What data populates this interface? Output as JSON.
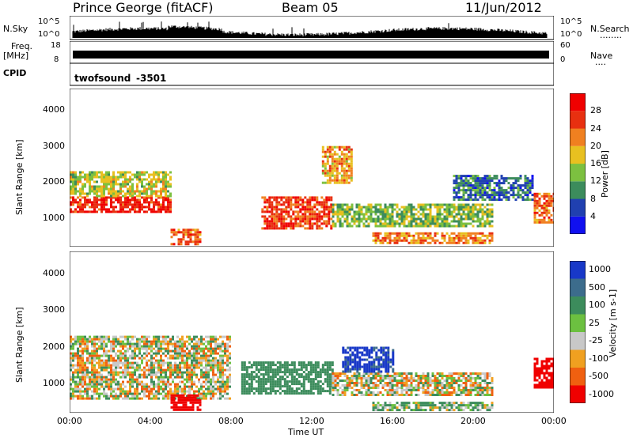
{
  "header": {
    "station": "Prince George (fitACF)",
    "beam": "Beam 05",
    "date": "11/Jun/2012"
  },
  "noise_panel": {
    "left_label": "N.Sky",
    "right_label": "N.Search",
    "left_ticks": [
      "10^5",
      "10^0"
    ],
    "right_ticks": [
      "10^5",
      "10^0"
    ],
    "dots": "........"
  },
  "freq_panel": {
    "left_label": "Freq.",
    "left_unit": "[MHz]",
    "left_ticks": [
      "18",
      "8"
    ],
    "right_label": "Nave",
    "right_ticks": [
      "60",
      "0"
    ],
    "dots": "...."
  },
  "cpid_panel": {
    "label": "CPID",
    "program": "twofsound",
    "cpid": "-3501"
  },
  "chart_data": [
    {
      "type": "heatmap",
      "title": "",
      "ylabel": "Slant Range [km]",
      "ylim": [
        200,
        4600
      ],
      "yticks": [
        "1000",
        "2000",
        "3000",
        "4000"
      ],
      "xlim": [
        "00:00",
        "24:00"
      ],
      "colorbar": {
        "label": "Power [dB]",
        "ticks": [
          "4",
          "8",
          "12",
          "16",
          "20",
          "24",
          "28"
        ],
        "range": [
          0,
          32
        ],
        "colors": [
          "#1010f0",
          "#2040b0",
          "#3c8c5c",
          "#7cc040",
          "#e8c020",
          "#f08020",
          "#e83010",
          "#f00000"
        ]
      },
      "bands": [
        {
          "t0": 0.0,
          "t1": 5.0,
          "r0": 1200,
          "r1": 1600,
          "level": 28
        },
        {
          "t0": 0.0,
          "t1": 5.0,
          "r0": 1600,
          "r1": 2300,
          "level": 16
        },
        {
          "t0": 5.0,
          "t1": 6.5,
          "r0": 300,
          "r1": 700,
          "level": 24
        },
        {
          "t0": 9.5,
          "t1": 13.0,
          "r0": 700,
          "r1": 1600,
          "level": 26
        },
        {
          "t0": 13.0,
          "t1": 21.0,
          "r0": 800,
          "r1": 1400,
          "level": 14
        },
        {
          "t0": 15.0,
          "t1": 21.0,
          "r0": 300,
          "r1": 600,
          "level": 22
        },
        {
          "t0": 23.0,
          "t1": 24.0,
          "r0": 900,
          "r1": 1700,
          "level": 24
        },
        {
          "t0": 19.0,
          "t1": 23.0,
          "r0": 1500,
          "r1": 2200,
          "level": 8
        },
        {
          "t0": 12.5,
          "t1": 14.0,
          "r0": 2000,
          "r1": 3000,
          "level": 20
        }
      ]
    },
    {
      "type": "heatmap",
      "title": "",
      "ylabel": "Slant Range [km]",
      "ylim": [
        200,
        4600
      ],
      "yticks": [
        "1000",
        "2000",
        "3000",
        "4000"
      ],
      "xlabel": "Time UT",
      "xticks": [
        "00:00",
        "04:00",
        "08:00",
        "12:00",
        "16:00",
        "20:00",
        "00:00"
      ],
      "colorbar": {
        "label": "Velocity [m s-1]",
        "ticks": [
          "1000",
          "500",
          "100",
          "25",
          "-25",
          "-100",
          "-500",
          "-1000"
        ],
        "colors": [
          "#1838c8",
          "#3c6c8c",
          "#3c8c5c",
          "#6cc040",
          "#c8c8c8",
          "#f0a020",
          "#f06010",
          "#f00000"
        ]
      },
      "bands": [
        {
          "t0": 0.0,
          "t1": 8.0,
          "r0": 600,
          "r1": 2300,
          "level": 0
        },
        {
          "t0": 5.0,
          "t1": 6.5,
          "r0": 300,
          "r1": 700,
          "level": -600
        },
        {
          "t0": 8.5,
          "t1": 13.0,
          "r0": 700,
          "r1": 1600,
          "level": 200
        },
        {
          "t0": 13.0,
          "t1": 21.0,
          "r0": 700,
          "r1": 1300,
          "level": 0
        },
        {
          "t0": 13.5,
          "t1": 16.0,
          "r0": 1300,
          "r1": 2000,
          "level": 800
        },
        {
          "t0": 23.0,
          "t1": 24.0,
          "r0": 900,
          "r1": 1700,
          "level": -900
        },
        {
          "t0": 15.0,
          "t1": 21.0,
          "r0": 300,
          "r1": 500,
          "level": 60
        }
      ]
    }
  ]
}
